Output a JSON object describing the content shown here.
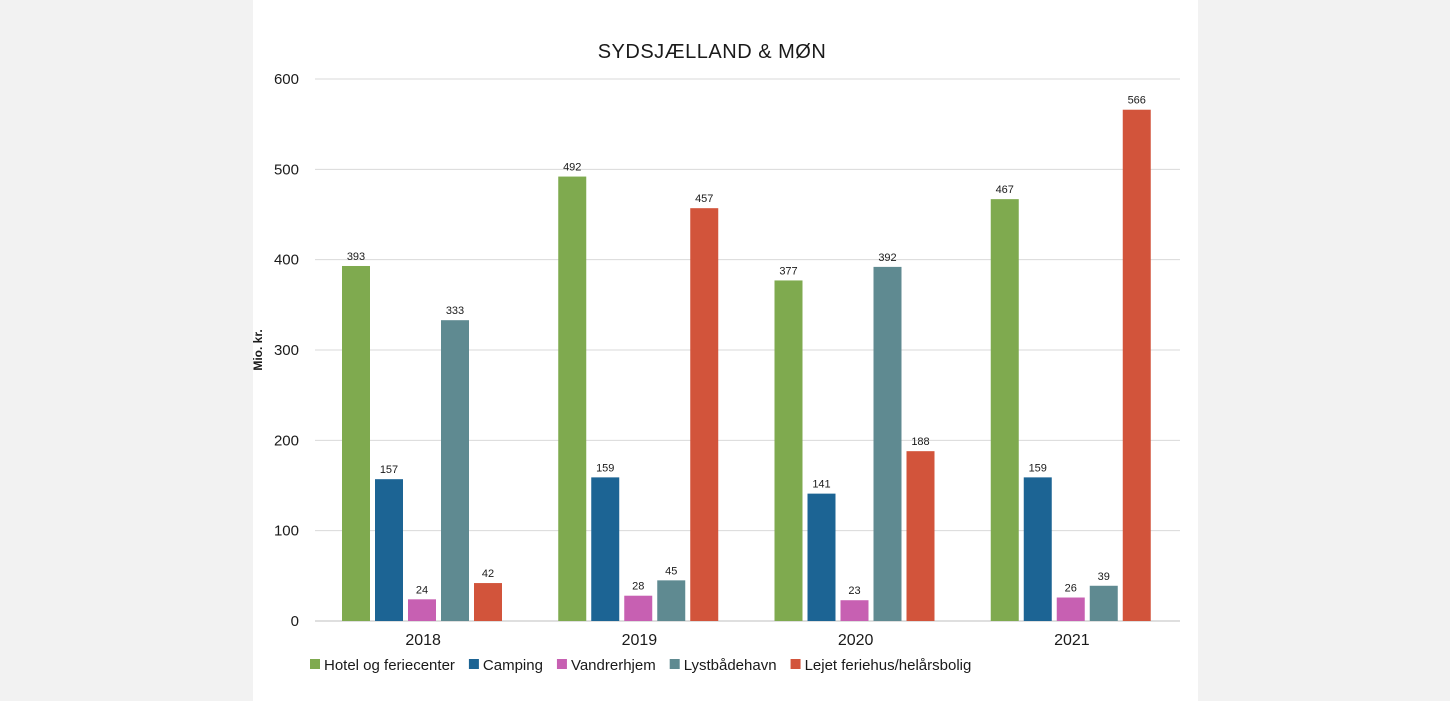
{
  "chart_data": {
    "type": "bar",
    "title": "SYDSJÆLLAND & MØN",
    "xlabel": "",
    "ylabel": "Mio. kr.",
    "ylim": [
      0,
      600
    ],
    "yticks": [
      "0",
      "100",
      "200",
      "300",
      "400",
      "500",
      "600"
    ],
    "grid": true,
    "legend_position": "bottom",
    "categories": [
      "2018",
      "2019",
      "2020",
      "2021"
    ],
    "series": [
      {
        "name": "Hotel og feriecenter",
        "color": "#7faa4f",
        "values": [
          393,
          492,
          377,
          467
        ]
      },
      {
        "name": "Camping",
        "color": "#1c6494",
        "values": [
          157,
          159,
          141,
          159
        ]
      },
      {
        "name": "Vandrerhjem",
        "color": "#c760b2",
        "values": [
          24,
          28,
          23,
          26
        ]
      },
      {
        "name": "Lystbådehavn",
        "color": "#5f8a91",
        "values": [
          333,
          45,
          392,
          39
        ]
      },
      {
        "name": "Lejet feriehus/helårsbolig",
        "color": "#d2543b",
        "values": [
          42,
          457,
          188,
          566
        ]
      }
    ]
  }
}
